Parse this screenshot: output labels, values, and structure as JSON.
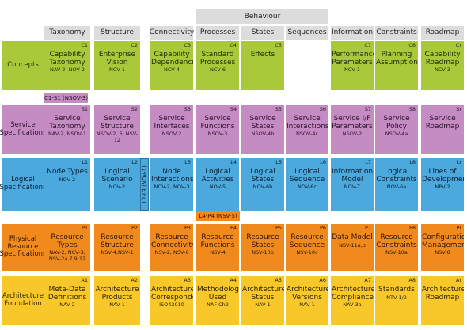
{
  "behaviour_label": "Behaviour",
  "columns": [
    "Taxonomy",
    "Structure",
    "Connectivity",
    "Processes",
    "States",
    "Sequences",
    "Information",
    "Constraints",
    "Roadmap"
  ],
  "rows": [
    {
      "label": "Concepts",
      "color": "green",
      "cells": [
        {
          "code": "C1",
          "title": "Capability Taxonomy",
          "ref": "NAV-2, NOV-2"
        },
        {
          "code": "C2",
          "title": "Enterprise Vision",
          "ref": "NCV-1"
        },
        {
          "code": "C3",
          "title": "Capability Dependencies",
          "ref": "NCV-4"
        },
        {
          "code": "C4",
          "title": "Standard Processes",
          "ref": "NCV-6"
        },
        {
          "code": "C5",
          "title": "Effects",
          "ref": ""
        },
        null,
        {
          "code": "C7",
          "title": "Performance Parameters",
          "ref": "NCV-1"
        },
        {
          "code": "C8",
          "title": "Planning Assumptions",
          "ref": ""
        },
        {
          "code": "Cr",
          "title": "Capability Roadmap",
          "ref": "NCV-3"
        }
      ]
    },
    {
      "label": "Service Specifications",
      "color": "purple",
      "cells": [
        {
          "code": "S1",
          "title": "Service Taxonomy",
          "ref": "NAV-2, NSOV-1"
        },
        {
          "code": "S2",
          "title": "Service Structure",
          "ref": "NSOV-2, 6, NSV-12"
        },
        {
          "code": "S3",
          "title": "Service Interfaces",
          "ref": "NSOV-2"
        },
        {
          "code": "S4",
          "title": "Service Functions",
          "ref": "NSOV-3"
        },
        {
          "code": "S5",
          "title": "Service States",
          "ref": "NSOV-4b"
        },
        {
          "code": "S6",
          "title": "Service Interactions",
          "ref": "NSOV-4c"
        },
        {
          "code": "S7",
          "title": "Service I/F Parameters",
          "ref": "NSOV-2"
        },
        {
          "code": "S8",
          "title": "Service Policy",
          "ref": "NSOV-4a"
        },
        {
          "code": "Sr",
          "title": "Service Roadmap",
          "ref": ""
        }
      ]
    },
    {
      "label": "Logical Specifications",
      "color": "blue",
      "cells": [
        {
          "code": "L1",
          "title": "Node Types",
          "ref": "NOV-2"
        },
        {
          "code": "L2",
          "title": "Logical Scenario",
          "ref": "NOV-2"
        },
        {
          "code": "L3",
          "title": "Node Interactions",
          "ref": "NOV-2, NOV-3"
        },
        {
          "code": "L4",
          "title": "Logical Activities",
          "ref": "NOV-5"
        },
        {
          "code": "L5",
          "title": "Logical States",
          "ref": "NOV-6b"
        },
        {
          "code": "L6",
          "title": "Logical Sequence",
          "ref": "NOV-6c"
        },
        {
          "code": "L7",
          "title": "Information Model",
          "ref": "NOV-7"
        },
        {
          "code": "L8",
          "title": "Logical Constraints",
          "ref": "NOV-6a"
        },
        {
          "code": "Lr",
          "title": "Lines of Development",
          "ref": "NPV-2"
        }
      ]
    },
    {
      "label": "Physical Resource Specifications",
      "color": "orange",
      "cells": [
        {
          "code": "P1",
          "title": "Resource Types",
          "ref": "NAV-2, NCV-3, NSV-2a,7,9,12"
        },
        {
          "code": "P2",
          "title": "Resource Structure",
          "ref": "NSV-4,NSV-1"
        },
        {
          "code": "P3",
          "title": "Resource Connectivity",
          "ref": "NSV-2, NSV-6"
        },
        {
          "code": "P4",
          "title": "Resource Functions",
          "ref": "NSV-4"
        },
        {
          "code": "P5",
          "title": "Resource States",
          "ref": "NSV-10b"
        },
        {
          "code": "P6",
          "title": "Resource Sequence",
          "ref": "NSV-10c"
        },
        {
          "code": "P7",
          "title": "Data Model",
          "ref": "NSV-11a,b"
        },
        {
          "code": "P8",
          "title": "Resource Constraints",
          "ref": "NSV-10a"
        },
        {
          "code": "Pr",
          "title": "Configuration Management",
          "ref": "NSV-8"
        }
      ]
    },
    {
      "label": "Architecture Foundation",
      "color": "yellow",
      "cells": [
        {
          "code": "A1",
          "title": "Meta-Data Definitions",
          "ref": "NAV-2"
        },
        {
          "code": "A2",
          "title": "Architecture Products",
          "ref": "NAV-1"
        },
        {
          "code": "A3",
          "title": "Architecture Correspondence",
          "ref": "ISO42010"
        },
        {
          "code": "A4",
          "title": "Methodology Used",
          "ref": "NAF Ch2"
        },
        {
          "code": "A5",
          "title": "Architecture Status",
          "ref": "NAV-1"
        },
        {
          "code": "A6",
          "title": "Architecture Versions",
          "ref": "NAV-1"
        },
        {
          "code": "A7",
          "title": "Architecture Compliance",
          "ref": "NAV-3a"
        },
        {
          "code": "A8",
          "title": "Standards",
          "ref": "NTV-1/2"
        },
        {
          "code": "Ar",
          "title": "Architecture Roadmap",
          "ref": ""
        }
      ]
    }
  ],
  "extras": {
    "c1_s1": "C1-S1 (NSOV-3)",
    "l2_l3": "L2-L3 (NOV-1)",
    "l4_p4": "L4-P4 (NSV-5)"
  },
  "colors": {
    "green": "#a9c93a",
    "purple": "#c58cc3",
    "blue": "#4ba9de",
    "orange": "#f08a1d",
    "yellow": "#f8c82a",
    "header": "#dcdcdc"
  }
}
